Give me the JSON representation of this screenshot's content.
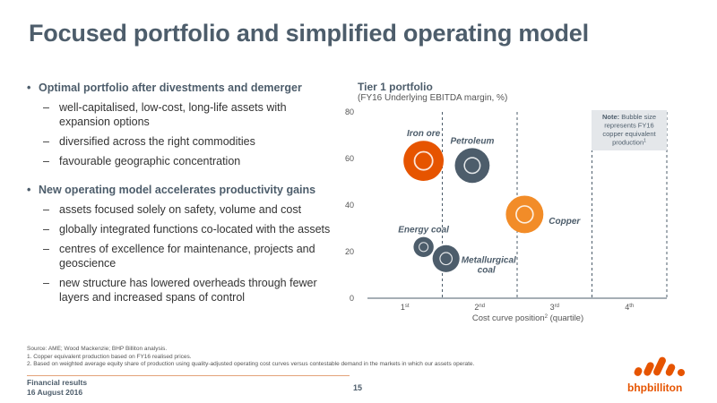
{
  "title": "Focused portfolio and simplified operating model",
  "bullets": [
    {
      "heading": "Optimal portfolio after divestments and demerger",
      "items": [
        "well-capitalised, low-cost, long-life assets with expansion options",
        "diversified across the right commodities",
        "favourable geographic concentration"
      ]
    },
    {
      "heading": "New operating model accelerates productivity gains",
      "items": [
        "assets focused solely on safety, volume and cost",
        "globally integrated functions co-located with the assets",
        "centres of excellence for maintenance, projects and geoscience",
        "new structure has lowered overheads through fewer layers and increased spans of control"
      ]
    }
  ],
  "chart_data": {
    "type": "scatter",
    "title": "Tier 1 portfolio",
    "subtitle": "(FY16 Underlying EBITDA margin, %)",
    "xlabel": "Cost curve position",
    "xlabel_sup": "2",
    "xlabel_suffix": " (quartile)",
    "x_ticks": [
      {
        "label": "1",
        "sup": "st"
      },
      {
        "label": "2",
        "sup": "nd"
      },
      {
        "label": "3",
        "sup": "rd"
      },
      {
        "label": "4",
        "sup": "th"
      }
    ],
    "xlim": [
      0,
      4
    ],
    "ylim": [
      0,
      80
    ],
    "y_ticks": [
      0,
      20,
      40,
      60,
      80
    ],
    "note_bold": "Note:",
    "note_lines": [
      " Bubble size",
      "represents FY16",
      "copper equivalent",
      "production"
    ],
    "note_sup": "1",
    "series": [
      {
        "name": "Iron ore",
        "x": 0.75,
        "y": 59,
        "size": 4.0,
        "color": "#e65400"
      },
      {
        "name": "Petroleum",
        "x": 1.4,
        "y": 57,
        "size": 3.0,
        "color": "#4d5d6b"
      },
      {
        "name": "Copper",
        "x": 2.1,
        "y": 36,
        "size": 3.5,
        "color": "#f28c28"
      },
      {
        "name": "Energy coal",
        "x": 0.75,
        "y": 22,
        "size": 1.0,
        "color": "#4d5d6b"
      },
      {
        "name": "Metallurgical coal",
        "x": 1.05,
        "y": 17,
        "size": 1.8,
        "color": "#4d5d6b"
      }
    ]
  },
  "footer": {
    "source": "Source:   AME; Wood Mackenzie; BHP Billiton analysis.",
    "note1": "1.  Copper equivalent production based on FY16 realised prices.",
    "note2": "2.  Based on weighted average equity share of production using quality-adjusted operating cost curves versus contestable demand in the markets in which our assets operate.",
    "doc_title": "Financial results",
    "date": "16 August 2016",
    "page": "15"
  },
  "logo": {
    "text": "bhpbilliton",
    "color": "#e65400"
  }
}
